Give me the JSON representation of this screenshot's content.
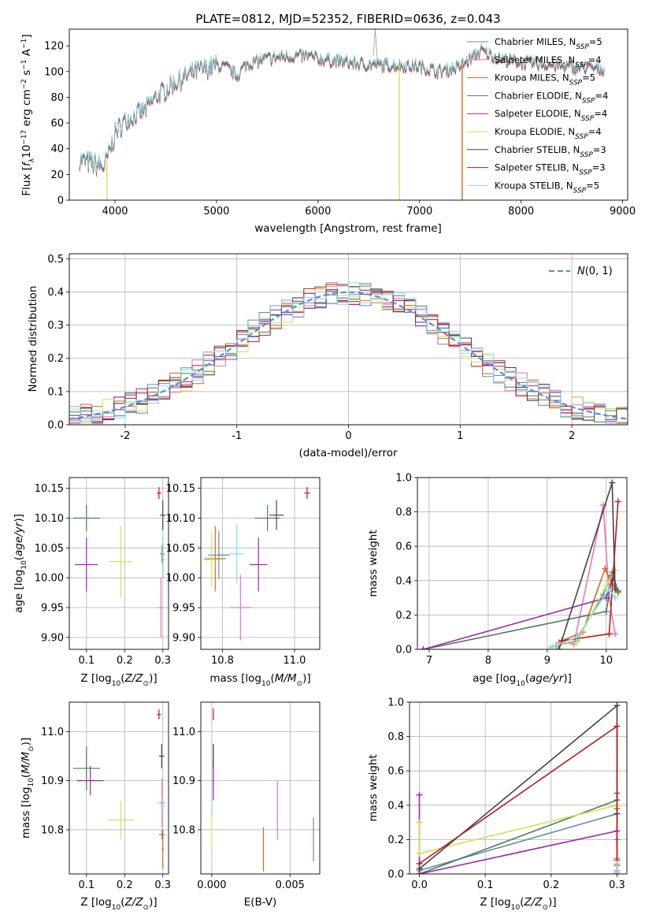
{
  "title": "PLATE=0812, MJD=52352, FIBERID=0636, z=0.043",
  "legend_models": [
    {
      "name": "Chabrier MILES",
      "nssp": "5",
      "color": "#6b8ba4"
    },
    {
      "name": "Salpeter MILES",
      "nssp": "4",
      "color": "#e377c2"
    },
    {
      "name": "Kroupa MILES",
      "nssp": "5",
      "color": "#d2691e"
    },
    {
      "name": "Chabrier ELODIE",
      "nssp": "4",
      "color": "#4a7c59"
    },
    {
      "name": "Salpeter ELODIE",
      "nssp": "4",
      "color": "#9c27b0"
    },
    {
      "name": "Kroupa ELODIE",
      "nssp": "4",
      "color": "#d4e157"
    },
    {
      "name": "Chabrier STELIB",
      "nssp": "3",
      "color": "#444444"
    },
    {
      "name": "Salpeter STELIB",
      "nssp": "3",
      "color": "#b71c1c"
    },
    {
      "name": "Kroupa STELIB",
      "nssp": "5",
      "color": "#80deea"
    }
  ],
  "chart_data": [
    {
      "id": "spectrum",
      "type": "line",
      "title": "PLATE=0812, MJD=52352, FIBERID=0636, z=0.043",
      "xlabel": "wavelength [Angstrom, rest frame]",
      "ylabel": "Flux [f_λ 10^-17 erg cm^-2 s^-1 A^-1]",
      "xlim": [
        3550,
        9050
      ],
      "ylim": [
        0,
        133
      ],
      "xticks": [
        4000,
        5000,
        6000,
        7000,
        8000,
        9000
      ],
      "yticks": [
        0,
        20,
        40,
        60,
        80,
        100,
        120
      ],
      "continuum": {
        "x": [
          3650,
          3700,
          3800,
          3900,
          3950,
          4000,
          4100,
          4200,
          4300,
          4400,
          4500,
          4600,
          4800,
          5000,
          5100,
          5200,
          5300,
          5500,
          5700,
          5900,
          6000,
          6200,
          6400,
          6600,
          6800,
          7000,
          7200,
          7400,
          7600,
          7800,
          8000,
          8200,
          8400,
          8600,
          8800
        ],
        "y": [
          32,
          30,
          28,
          26,
          38,
          52,
          62,
          66,
          70,
          80,
          86,
          92,
          100,
          105,
          103,
          97,
          106,
          110,
          112,
          112,
          110,
          108,
          106,
          105,
          105,
          104,
          100,
          104,
          116,
          110,
          107,
          106,
          104,
          103,
          102
        ]
      },
      "dropouts": [
        3920,
        6800,
        7420
      ],
      "series": [
        {
          "name": "Chabrier MILES, N_SSP=5"
        },
        {
          "name": "Salpeter MILES, N_SSP=4"
        },
        {
          "name": "Kroupa MILES, N_SSP=5"
        },
        {
          "name": "Chabrier ELODIE, N_SSP=4"
        },
        {
          "name": "Salpeter ELODIE, N_SSP=4"
        },
        {
          "name": "Kroupa ELODIE, N_SSP=4"
        },
        {
          "name": "Chabrier STELIB, N_SSP=3"
        },
        {
          "name": "Salpeter STELIB, N_SSP=3"
        },
        {
          "name": "Kroupa STELIB, N_SSP=5"
        }
      ],
      "legend_position": "upper right",
      "grid": false
    },
    {
      "id": "residuals",
      "type": "line",
      "xlabel": "(data-model)/error",
      "ylabel": "Normed distribution",
      "xlim": [
        -2.5,
        2.5
      ],
      "ylim": [
        0,
        0.515
      ],
      "xticks": [
        -2,
        -1,
        0,
        1,
        2
      ],
      "yticks": [
        0.0,
        0.1,
        0.2,
        0.3,
        0.4,
        0.5
      ],
      "gaussian_label": "N(0,1)",
      "grid": true,
      "legend_position": "upper right"
    },
    {
      "id": "age_vs_Z",
      "type": "scatter",
      "xlabel": "Z [log10(Z/Z⊙)]",
      "ylabel": "age  [log10(age/yr)]",
      "xlim": [
        0.055,
        0.315
      ],
      "ylim": [
        9.88,
        10.168
      ],
      "xticks": [
        0.1,
        0.2,
        0.3
      ],
      "yticks": [
        9.9,
        9.95,
        10.0,
        10.05,
        10.1,
        10.15
      ],
      "points": [
        {
          "model": 0,
          "x": 0.298,
          "y": 10.04,
          "xerr": 0.006,
          "yerr": 0.015
        },
        {
          "model": 1,
          "x": 0.295,
          "y": 9.95,
          "xerr": 0.008,
          "yerr": 0.05
        },
        {
          "model": 2,
          "x": 0.3,
          "y": 10.03,
          "xerr": 0.004,
          "yerr": 0.03
        },
        {
          "model": 3,
          "x": 0.1,
          "y": 10.1,
          "xerr": 0.035,
          "yerr": 0.022
        },
        {
          "model": 4,
          "x": 0.1,
          "y": 10.022,
          "xerr": 0.03,
          "yerr": 0.045
        },
        {
          "model": 5,
          "x": 0.19,
          "y": 10.027,
          "xerr": 0.03,
          "yerr": 0.06
        },
        {
          "model": 6,
          "x": 0.3,
          "y": 10.105,
          "xerr": 0.007,
          "yerr": 0.025
        },
        {
          "model": 7,
          "x": 0.29,
          "y": 10.142,
          "xerr": 0.006,
          "yerr": 0.01
        },
        {
          "model": 8,
          "x": 0.3,
          "y": 10.038,
          "xerr": 0.005,
          "yerr": 0.04
        }
      ],
      "grid": true
    },
    {
      "id": "age_vs_mass",
      "type": "scatter",
      "xlabel": "mass [log10(M/M⊙)]",
      "ylabel": "",
      "xlim": [
        10.74,
        11.07
      ],
      "ylim": [
        9.88,
        10.168
      ],
      "xticks": [
        10.8,
        11.0
      ],
      "yticks": [
        9.9,
        9.95,
        10.0,
        10.05,
        10.1,
        10.15
      ],
      "points": [
        {
          "model": 0,
          "x": 10.79,
          "y": 10.038,
          "xerr": 0.03,
          "yerr": 0.04
        },
        {
          "model": 1,
          "x": 10.85,
          "y": 9.95,
          "xerr": 0.03,
          "yerr": 0.055
        },
        {
          "model": 2,
          "x": 10.78,
          "y": 10.032,
          "xerr": 0.03,
          "yerr": 0.055
        },
        {
          "model": 3,
          "x": 10.925,
          "y": 10.1,
          "xerr": 0.035,
          "yerr": 0.022
        },
        {
          "model": 4,
          "x": 10.9,
          "y": 10.022,
          "xerr": 0.025,
          "yerr": 0.045
        },
        {
          "model": 5,
          "x": 10.77,
          "y": 10.03,
          "xerr": 0.025,
          "yerr": 0.045
        },
        {
          "model": 6,
          "x": 10.95,
          "y": 10.105,
          "xerr": 0.02,
          "yerr": 0.025
        },
        {
          "model": 7,
          "x": 11.035,
          "y": 10.142,
          "xerr": 0.008,
          "yerr": 0.01
        },
        {
          "model": 8,
          "x": 10.84,
          "y": 10.04,
          "xerr": 0.02,
          "yerr": 0.05
        }
      ],
      "grid": true
    },
    {
      "id": "massweight_vs_age",
      "type": "line",
      "xlabel": "age  [log10(age/yr)]",
      "ylabel": "mass weight",
      "xlim": [
        6.8,
        10.35
      ],
      "ylim": [
        0,
        1.0
      ],
      "xticks": [
        7,
        8,
        9,
        10
      ],
      "yticks": [
        0.0,
        0.2,
        0.4,
        0.6,
        0.8,
        1.0
      ],
      "lines": [
        {
          "model": 0,
          "x": [
            9.15,
            9.5,
            9.95,
            10.1,
            10.2
          ],
          "y": [
            0.02,
            0.05,
            0.32,
            0.45,
            0.34
          ]
        },
        {
          "model": 1,
          "x": [
            9.2,
            9.45,
            9.95,
            10.05,
            10.15
          ],
          "y": [
            0.04,
            0.03,
            0.84,
            0.3,
            0.09
          ]
        },
        {
          "model": 2,
          "x": [
            9.25,
            9.6,
            9.98,
            10.1,
            10.2
          ],
          "y": [
            0.05,
            0.1,
            0.47,
            0.38,
            0.33
          ]
        },
        {
          "model": 3,
          "x": [
            6.9,
            10.0,
            10.1,
            10.2
          ],
          "y": [
            0.0,
            0.22,
            0.43,
            0.34
          ]
        },
        {
          "model": 4,
          "x": [
            6.9,
            10.0,
            10.15
          ],
          "y": [
            0.0,
            0.3,
            0.46
          ]
        },
        {
          "model": 5,
          "x": [
            9.1,
            9.5,
            10.0,
            10.15
          ],
          "y": [
            0.02,
            0.04,
            0.37,
            0.46
          ]
        },
        {
          "model": 6,
          "x": [
            9.2,
            10.1,
            10.15
          ],
          "y": [
            0.0,
            0.97,
            0.35
          ]
        },
        {
          "model": 7,
          "x": [
            9.25,
            10.05,
            10.2
          ],
          "y": [
            0.05,
            0.09,
            0.86
          ]
        },
        {
          "model": 8,
          "x": [
            9.05,
            9.5,
            10.05,
            10.15
          ],
          "y": [
            0.01,
            0.07,
            0.35,
            0.3
          ]
        }
      ],
      "grid": true
    },
    {
      "id": "mass_vs_Z",
      "type": "scatter",
      "xlabel": "Z [log10(Z/Z⊙)]",
      "ylabel": "mass [log10(M/M⊙)]",
      "xlim": [
        0.055,
        0.315
      ],
      "ylim": [
        10.71,
        11.06
      ],
      "xticks": [
        0.1,
        0.2,
        0.3
      ],
      "yticks": [
        10.8,
        10.9,
        11.0
      ],
      "points": [
        {
          "model": 0,
          "x": 0.298,
          "y": 10.79,
          "xerr": 0.008,
          "yerr": 0.01
        },
        {
          "model": 1,
          "x": 0.298,
          "y": 10.855,
          "xerr": 0.008,
          "yerr": 0.05
        },
        {
          "model": 2,
          "x": 0.3,
          "y": 10.76,
          "xerr": 0.003,
          "yerr": 0.04
        },
        {
          "model": 3,
          "x": 0.1,
          "y": 10.925,
          "xerr": 0.035,
          "yerr": 0.045
        },
        {
          "model": 4,
          "x": 0.11,
          "y": 10.9,
          "xerr": 0.035,
          "yerr": 0.03
        },
        {
          "model": 5,
          "x": 0.19,
          "y": 10.82,
          "xerr": 0.035,
          "yerr": 0.04
        },
        {
          "model": 6,
          "x": 0.297,
          "y": 10.95,
          "xerr": 0.007,
          "yerr": 0.025
        },
        {
          "model": 7,
          "x": 0.29,
          "y": 11.035,
          "xerr": 0.005,
          "yerr": 0.01
        },
        {
          "model": 8,
          "x": 0.3,
          "y": 10.85,
          "xerr": 0.004,
          "yerr": 0.02
        }
      ],
      "grid": true
    },
    {
      "id": "mass_vs_EBV",
      "type": "scatter",
      "xlabel": "E(B-V)",
      "ylabel": "",
      "xlim": [
        -0.0007,
        0.0069
      ],
      "ylim": [
        10.71,
        11.06
      ],
      "xticks": [
        0.0,
        0.005
      ],
      "xtick_labels": [
        "0.000",
        "0.005"
      ],
      "yticks": [
        10.8,
        10.9,
        11.0
      ],
      "points": [
        {
          "model": 0,
          "x": 0.0065,
          "y": 10.78,
          "xerr": 0.0,
          "yerr": 0.045
        },
        {
          "model": 1,
          "x": 0.0042,
          "y": 10.84,
          "xerr": 0.0,
          "yerr": 0.06
        },
        {
          "model": 2,
          "x": 0.0033,
          "y": 10.76,
          "xerr": 0.0,
          "yerr": 0.045
        },
        {
          "model": 3,
          "x": 0.0001,
          "y": 10.925,
          "xerr": 0.0,
          "yerr": 0.045
        },
        {
          "model": 4,
          "x": 0.0001,
          "y": 10.9,
          "xerr": 0.0,
          "yerr": 0.04
        },
        {
          "model": 5,
          "x": 0.0,
          "y": 10.8,
          "xerr": 0.0,
          "yerr": 0.04
        },
        {
          "model": 6,
          "x": 0.0001,
          "y": 10.95,
          "xerr": 0.0,
          "yerr": 0.025
        },
        {
          "model": 7,
          "x": 0.0001,
          "y": 11.035,
          "xerr": 0.0,
          "yerr": 0.012
        },
        {
          "model": 8,
          "x": 0.0,
          "y": 10.85,
          "xerr": 0.0,
          "yerr": 0.02
        }
      ],
      "grid": true
    },
    {
      "id": "massweight_vs_Z",
      "type": "line",
      "xlabel": "Z [log10(Z/Z⊙)]",
      "ylabel": "mass weight",
      "xlim": [
        -0.015,
        0.315
      ],
      "ylim": [
        0,
        1.0
      ],
      "xticks": [
        0.0,
        0.1,
        0.2,
        0.3
      ],
      "yticks": [
        0.0,
        0.2,
        0.4,
        0.6,
        0.8,
        1.0
      ],
      "lines": [
        {
          "model": 0,
          "x": [
            0.0,
            0.3,
            0.3,
            0.3
          ],
          "y": [
            0.02,
            0.35,
            0.05,
            0.2
          ]
        },
        {
          "model": 1,
          "x": [
            0.3,
            0.3,
            0.3
          ],
          "y": [
            0.02,
            0.09,
            0.08
          ]
        },
        {
          "model": 2,
          "x": [
            0.3,
            0.3,
            0.3
          ],
          "y": [
            0.05,
            0.38,
            0.08
          ]
        },
        {
          "model": 3,
          "x": [
            0.0,
            0.3,
            0.3
          ],
          "y": [
            0.0,
            0.43,
            0.47
          ]
        },
        {
          "model": 4,
          "x": [
            0.0,
            0.0,
            0.0,
            0.3
          ],
          "y": [
            0.46,
            0.3,
            0.0,
            0.25
          ]
        },
        {
          "model": 5,
          "x": [
            0.0,
            0.0,
            0.3
          ],
          "y": [
            0.3,
            0.12,
            0.4
          ]
        },
        {
          "model": 6,
          "x": [
            0.0,
            0.3,
            0.3
          ],
          "y": [
            0.03,
            0.98,
            0.35
          ]
        },
        {
          "model": 7,
          "x": [
            0.0,
            0.3,
            0.3
          ],
          "y": [
            0.06,
            0.86,
            0.0
          ]
        },
        {
          "model": 8,
          "x": [
            0.3,
            0.3
          ],
          "y": [
            0.01,
            0.06
          ]
        }
      ],
      "grid": true
    }
  ]
}
